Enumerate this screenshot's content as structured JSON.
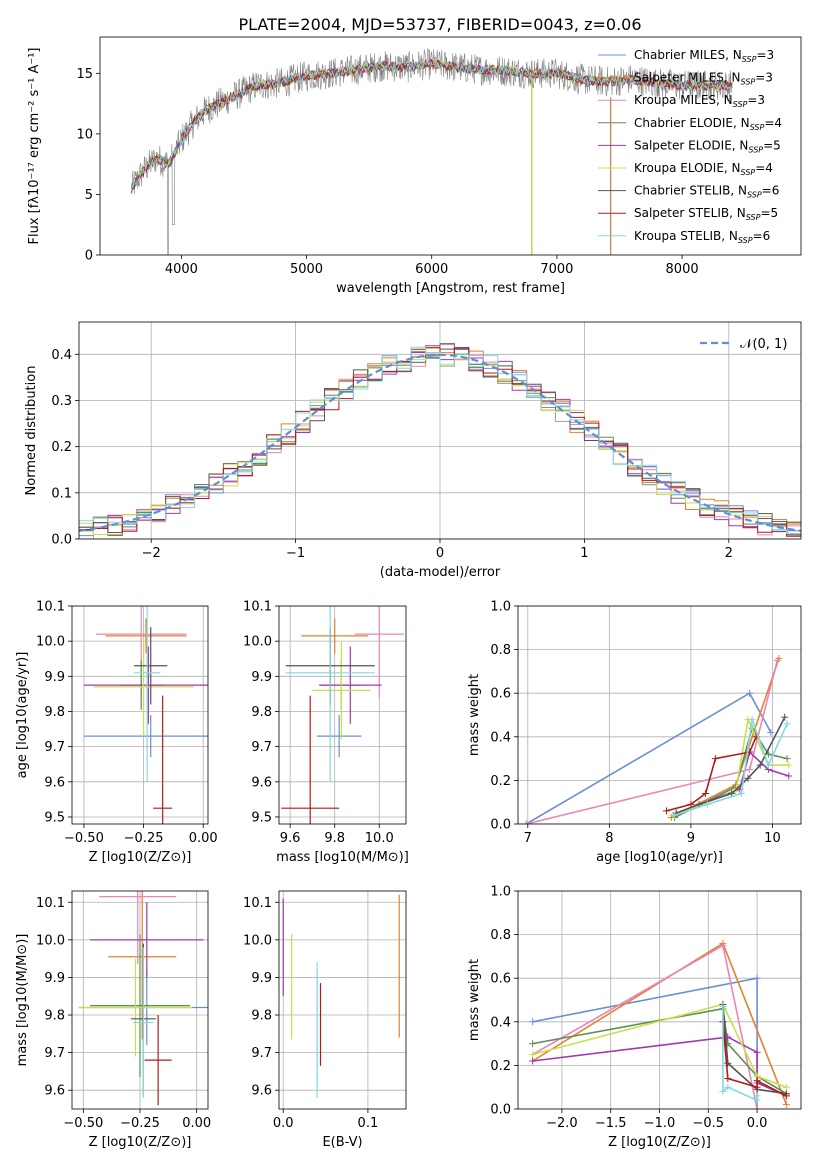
{
  "figure_title": "PLATE=2004, MJD=53737, FIBERID=0043, z=0.06",
  "model_colors": [
    "#6a8fd8",
    "#e2822c",
    "#e886b8",
    "#5f8f55",
    "#a238b0",
    "#c8e04a",
    "#555555",
    "#b01c1c",
    "#84d8e0"
  ],
  "chart_data": [
    {
      "id": "spectrum",
      "type": "line",
      "title": "PLATE=2004, MJD=53737, FIBERID=0043, z=0.06",
      "xlabel": "wavelength [Angstrom, rest frame]",
      "ylabel": "Flux [fλ10⁻¹⁷ erg cm⁻² s⁻¹ A⁻¹]",
      "xlim": [
        3350,
        8950
      ],
      "ylim": [
        0,
        18
      ],
      "xticks": [
        4000,
        5000,
        6000,
        7000,
        8000
      ],
      "yticks": [
        0,
        5,
        10,
        15
      ],
      "grid": false,
      "legend": "top-right",
      "data_color": "#808080",
      "data_flux_points": {
        "x": [
          3600,
          3700,
          3800,
          3900,
          4000,
          4100,
          4200,
          4300,
          4400,
          4500,
          4600,
          4800,
          5000,
          5200,
          5400,
          5600,
          5800,
          6000,
          6200,
          6400,
          6600,
          6800,
          7000,
          7200,
          7400,
          7600,
          7800,
          8000,
          8200,
          8400
        ],
        "y": [
          5.5,
          7.0,
          8.0,
          7.5,
          9.5,
          11.0,
          12.0,
          12.5,
          13.0,
          13.5,
          14.0,
          14.2,
          14.8,
          15.0,
          15.3,
          15.6,
          15.5,
          15.8,
          15.5,
          15.3,
          15.2,
          15.0,
          15.0,
          14.5,
          14.3,
          14.5,
          14.2,
          14.0,
          14.0,
          14.0
        ]
      },
      "series": [
        {
          "name": "Chabrier MILES, N_SSP=3"
        },
        {
          "name": "Salpeter MILES, N_SSP=3"
        },
        {
          "name": "Kroupa MILES, N_SSP=3"
        },
        {
          "name": "Chabrier ELODIE, N_SSP=4"
        },
        {
          "name": "Salpeter ELODIE, N_SSP=5"
        },
        {
          "name": "Kroupa ELODIE, N_SSP=4"
        },
        {
          "name": "Chabrier STELIB, N_SSP=6"
        },
        {
          "name": "Salpeter STELIB, N_SSP=5"
        },
        {
          "name": "Kroupa STELIB, N_SSP=6"
        }
      ]
    },
    {
      "id": "residuals",
      "type": "line",
      "xlabel": "(data-model)/error",
      "ylabel": "Normed distribution",
      "xlim": [
        -2.5,
        2.5
      ],
      "ylim": [
        0,
        0.47
      ],
      "xticks": [
        -2,
        -1,
        0,
        1,
        2
      ],
      "yticks": [
        0.0,
        0.1,
        0.2,
        0.3,
        0.4
      ],
      "grid": true,
      "legend": "top-right",
      "legend_label": "N(0,1)",
      "bin_width": 0.1
    },
    {
      "id": "age_vs_Z",
      "type": "scatter",
      "xlabel": "Z [log10(Z/Z⊙)]",
      "ylabel": "age  [log10(age/yr)]",
      "xlim": [
        -0.55,
        0.02
      ],
      "ylim": [
        9.48,
        10.1
      ],
      "xticks": [
        -0.5,
        -0.25,
        0.0
      ],
      "xticklabels": [
        "−0.50",
        "−0.25",
        "0.00"
      ],
      "yticks": [
        9.5,
        9.6,
        9.7,
        9.8,
        9.9,
        10.0,
        10.1
      ],
      "grid": true,
      "errorbars": [
        {
          "x": -0.22,
          "y": 9.73,
          "xerr": 0.28,
          "yerr": 0.06
        },
        {
          "x": -0.24,
          "y": 10.015,
          "xerr": 0.17,
          "yerr": 0.05
        },
        {
          "x": -0.26,
          "y": 10.02,
          "xerr": 0.19,
          "yerr": 0.18
        },
        {
          "x": -0.26,
          "y": 9.875,
          "xerr": 0.09,
          "yerr": 0.07
        },
        {
          "x": -0.23,
          "y": 9.875,
          "xerr": 0.27,
          "yerr": 0.11
        },
        {
          "x": -0.25,
          "y": 9.87,
          "xerr": 0.21,
          "yerr": 0.14
        },
        {
          "x": -0.22,
          "y": 9.93,
          "xerr": 0.07,
          "yerr": 0.11
        },
        {
          "x": -0.17,
          "y": 9.525,
          "xerr": 0.04,
          "yerr": 0.32
        },
        {
          "x": -0.235,
          "y": 9.91,
          "xerr": 0.055,
          "yerr": 0.31
        }
      ]
    },
    {
      "id": "age_vs_mass",
      "type": "scatter",
      "xlabel": "mass [log10(M/M⊙)]",
      "ylabel": "",
      "xlim": [
        9.55,
        10.12
      ],
      "ylim": [
        9.48,
        10.1
      ],
      "xticks": [
        9.6,
        9.8,
        10.0
      ],
      "yticks": [
        9.5,
        9.6,
        9.7,
        9.8,
        9.9,
        10.0,
        10.1
      ],
      "grid": true,
      "errorbars": [
        {
          "x": 9.82,
          "y": 9.73,
          "xerr": 0.1,
          "yerr": 0.06
        },
        {
          "x": 9.8,
          "y": 10.015,
          "xerr": 0.15,
          "yerr": 0.05
        },
        {
          "x": 10.0,
          "y": 10.02,
          "xerr": 0.11,
          "yerr": 0.18
        },
        {
          "x": 9.83,
          "y": 9.875,
          "xerr": 0.09,
          "yerr": 0.07
        },
        {
          "x": 9.87,
          "y": 9.875,
          "xerr": 0.14,
          "yerr": 0.11
        },
        {
          "x": 9.83,
          "y": 9.86,
          "xerr": 0.13,
          "yerr": 0.14
        },
        {
          "x": 9.78,
          "y": 9.93,
          "xerr": 0.2,
          "yerr": 0.11
        },
        {
          "x": 9.69,
          "y": 9.525,
          "xerr": 0.13,
          "yerr": 0.32
        },
        {
          "x": 9.78,
          "y": 9.91,
          "xerr": 0.2,
          "yerr": 0.31
        }
      ]
    },
    {
      "id": "weight_vs_age",
      "type": "line",
      "xlabel": "age  [log10(age/yr)]",
      "ylabel": "mass weight",
      "xlim": [
        6.88,
        10.35
      ],
      "ylim": [
        0,
        1
      ],
      "xticks": [
        7,
        8,
        9,
        10
      ],
      "yticks": [
        0.0,
        0.2,
        0.4,
        0.6,
        0.8,
        1.0
      ],
      "grid": true,
      "series_points": [
        {
          "x": [
            6.98,
            9.72,
            9.98
          ],
          "y": [
            0.0,
            0.6,
            0.42
          ]
        },
        {
          "x": [
            8.76,
            9.55,
            10.08
          ],
          "y": [
            0.03,
            0.18,
            0.76
          ]
        },
        {
          "x": [
            6.98,
            9.72,
            10.06
          ],
          "y": [
            0.0,
            0.25,
            0.75
          ]
        },
        {
          "x": [
            8.8,
            9.55,
            9.75,
            9.95,
            10.18
          ],
          "y": [
            0.03,
            0.17,
            0.44,
            0.32,
            0.3
          ]
        },
        {
          "x": [
            8.82,
            9.6,
            9.72,
            9.95,
            10.2
          ],
          "y": [
            0.05,
            0.16,
            0.33,
            0.25,
            0.22
          ]
        },
        {
          "x": [
            8.78,
            9.55,
            9.7,
            9.95,
            10.2
          ],
          "y": [
            0.04,
            0.15,
            0.48,
            0.27,
            0.27
          ]
        },
        {
          "x": [
            8.82,
            9.1,
            9.5,
            9.7,
            9.85,
            10.15
          ],
          "y": [
            0.05,
            0.09,
            0.14,
            0.21,
            0.27,
            0.49
          ]
        },
        {
          "x": [
            8.7,
            9.0,
            9.18,
            9.3,
            9.72,
            9.8
          ],
          "y": [
            0.06,
            0.09,
            0.14,
            0.3,
            0.33,
            0.4
          ]
        },
        {
          "x": [
            8.8,
            9.2,
            9.62,
            9.75,
            9.95,
            10.18
          ],
          "y": [
            0.04,
            0.09,
            0.14,
            0.48,
            0.27,
            0.46
          ]
        }
      ]
    },
    {
      "id": "mass_vs_Z",
      "type": "scatter",
      "xlabel": "Z [log10(Z/Z⊙)]",
      "ylabel": "mass [log10(M/M⊙)]",
      "xlim": [
        -0.55,
        0.05
      ],
      "ylim": [
        9.55,
        10.13
      ],
      "xticks": [
        -0.5,
        -0.25,
        0.0
      ],
      "xticklabels": [
        "−0.50",
        "−0.25",
        "0.00"
      ],
      "yticks": [
        9.6,
        9.7,
        9.8,
        9.9,
        10.0,
        10.1
      ],
      "grid": true,
      "errorbars": [
        {
          "x": -0.22,
          "y": 9.82,
          "xerr": 0.3,
          "yerr": 0.1
        },
        {
          "x": -0.24,
          "y": 9.955,
          "xerr": 0.15,
          "yerr": 0.22
        },
        {
          "x": -0.26,
          "y": 10.115,
          "xerr": 0.17,
          "yerr": 0.18
        },
        {
          "x": -0.25,
          "y": 9.825,
          "xerr": 0.22,
          "yerr": 0.19
        },
        {
          "x": -0.22,
          "y": 10.0,
          "xerr": 0.25,
          "yerr": 0.1
        },
        {
          "x": -0.27,
          "y": 9.82,
          "xerr": 0.25,
          "yerr": 0.13
        },
        {
          "x": -0.235,
          "y": 9.79,
          "xerr": 0.055,
          "yerr": 0.2
        },
        {
          "x": -0.17,
          "y": 9.68,
          "xerr": 0.06,
          "yerr": 0.12
        },
        {
          "x": -0.235,
          "y": 9.78,
          "xerr": 0.045,
          "yerr": 0.2
        }
      ]
    },
    {
      "id": "mass_vs_ebv",
      "type": "scatter",
      "xlabel": "E(B-V)",
      "ylabel": "",
      "xlim": [
        -0.005,
        0.145
      ],
      "ylim": [
        9.55,
        10.13
      ],
      "xticks": [
        0.0,
        0.1
      ],
      "yticks": [
        9.6,
        9.7,
        9.8,
        9.9,
        10.0,
        10.1
      ],
      "grid": true,
      "vbars": [
        {
          "x": 0.04,
          "y": 9.775,
          "yerr": 0.165
        },
        {
          "x": 0.137,
          "y": 9.93,
          "yerr": 0.19
        },
        {
          "x": 0.0,
          "y": 9.98,
          "yerr": 0.13
        },
        {
          "x": 0.01,
          "y": 9.875,
          "yerr": 0.14
        },
        {
          "x": 0.044,
          "y": 9.775,
          "yerr": 0.11
        },
        {
          "x": 0.04,
          "y": 9.75,
          "yerr": 0.17
        }
      ]
    },
    {
      "id": "weight_vs_Z",
      "type": "line",
      "xlabel": "Z [log10(Z/Z⊙)]",
      "ylabel": "mass weight",
      "xlim": [
        -2.45,
        0.45
      ],
      "ylim": [
        0,
        1
      ],
      "xticks": [
        -2.0,
        -1.5,
        -1.0,
        -0.5,
        0.0
      ],
      "xticklabels": [
        "−2.0",
        "−1.5",
        "−1.0",
        "−0.5",
        "0.0"
      ],
      "yticks": [
        0.0,
        0.2,
        0.4,
        0.6,
        0.8,
        1.0
      ],
      "grid": true,
      "series_points": [
        {
          "x": [
            -2.3,
            0.0,
            0.0
          ],
          "y": [
            0.4,
            0.6,
            0.0
          ]
        },
        {
          "x": [
            -2.3,
            -0.35,
            0.3
          ],
          "y": [
            0.22,
            0.76,
            0.02
          ]
        },
        {
          "x": [
            -2.3,
            -0.35,
            0.0
          ],
          "y": [
            0.25,
            0.75,
            0.0
          ]
        },
        {
          "x": [
            -2.3,
            -0.35,
            -0.3,
            0.0,
            0.3
          ],
          "y": [
            0.3,
            0.46,
            0.3,
            0.15,
            0.07
          ]
        },
        {
          "x": [
            -2.3,
            -0.3,
            0.0,
            0.0,
            0.3
          ],
          "y": [
            0.22,
            0.33,
            0.26,
            0.12,
            0.06
          ]
        },
        {
          "x": [
            -2.3,
            -0.35,
            0.0,
            0.3
          ],
          "y": [
            0.25,
            0.48,
            0.15,
            0.1
          ]
        },
        {
          "x": [
            -0.35,
            -0.3,
            0.0,
            0.3
          ],
          "y": [
            0.48,
            0.21,
            0.09,
            0.07
          ]
        },
        {
          "x": [
            -0.35,
            -0.3,
            0.0,
            0.0,
            0.3
          ],
          "y": [
            0.4,
            0.14,
            0.1,
            0.13,
            0.06
          ]
        },
        {
          "x": [
            -0.35,
            -0.35,
            -0.3,
            0.0,
            0.0
          ],
          "y": [
            0.47,
            0.08,
            0.1,
            0.04,
            0.06
          ]
        }
      ]
    }
  ]
}
